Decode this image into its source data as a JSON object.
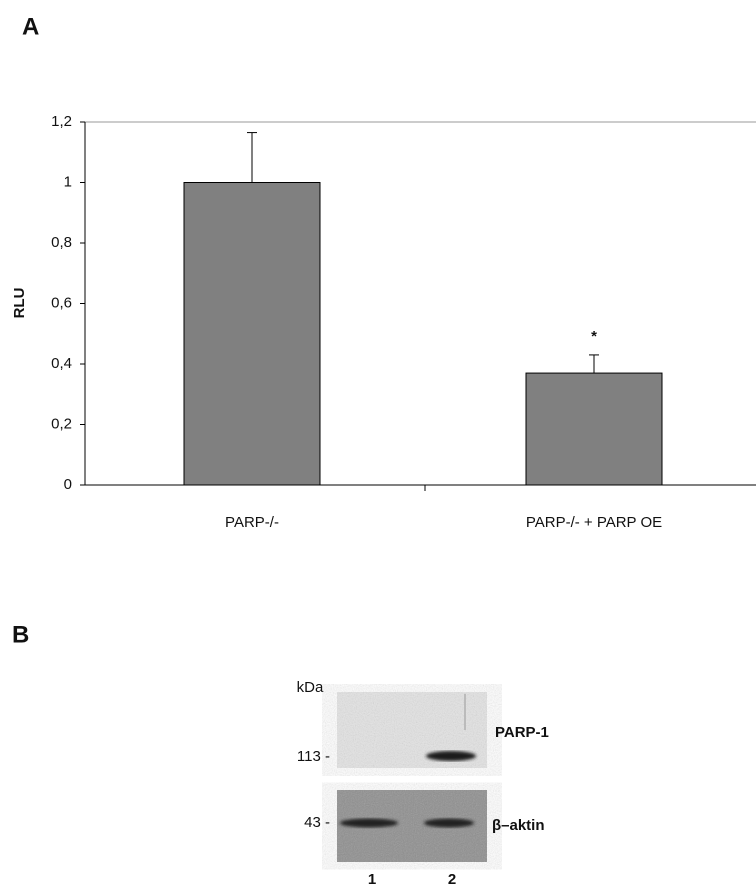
{
  "panel_labels": [
    "A",
    "B"
  ],
  "chart_data": {
    "type": "bar",
    "y_label": "RLU",
    "categories": [
      "PARP-/-",
      "PARP-/- + PARP OE"
    ],
    "values": [
      1,
      0.37
    ],
    "errors": [
      0.165,
      0.06
    ],
    "color": "#808080",
    "annotations": [
      {
        "text": "*",
        "category": 1
      }
    ],
    "ylim": [
      0,
      1.2
    ],
    "yticks": [
      0,
      {
        "value": 0.2,
        "label": "0,2"
      },
      {
        "value": 0.4,
        "label": "0,4"
      },
      {
        "value": 0.6,
        "label": "0,6"
      },
      {
        "value": 0.8,
        "label": "0,8"
      },
      1,
      {
        "value": 1.2,
        "label": "1,2"
      }
    ]
  },
  "blot": {
    "unit": "kDa",
    "markers": [
      "113 -",
      "43 -"
    ],
    "proteins": [
      "PARP-1",
      "β–aktin"
    ],
    "lanes": [
      "1",
      "2"
    ]
  }
}
